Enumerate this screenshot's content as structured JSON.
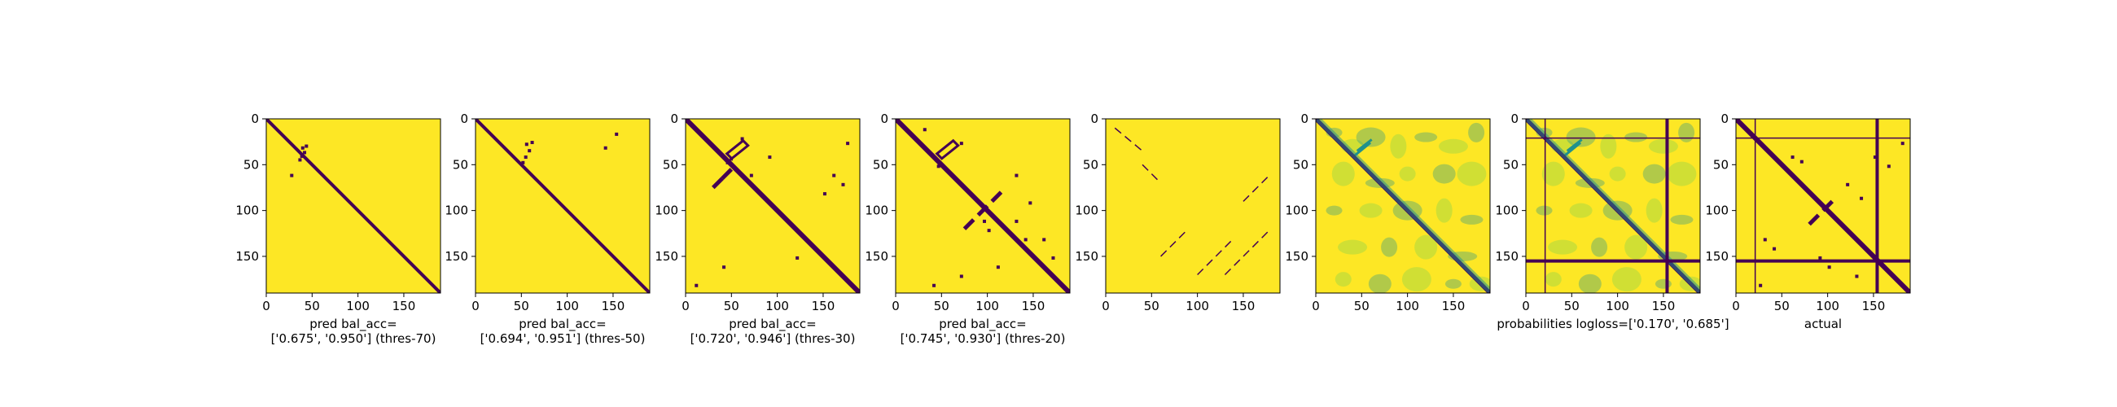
{
  "colors": {
    "low": "#440154",
    "mid": "#21918c",
    "light": "#7ad151",
    "high": "#fde725"
  },
  "chart_data": [
    {
      "type": "heatmap",
      "kind": "binary",
      "xlabel_lines": [
        "pred bal_acc=",
        "['0.675', '0.950'] (thres-70)"
      ],
      "xticks": [
        0,
        50,
        100,
        150
      ],
      "yticks": [
        0,
        50,
        100,
        150
      ],
      "xlim": [
        0,
        190
      ],
      "ylim": [
        0,
        190
      ]
    },
    {
      "type": "heatmap",
      "kind": "binary",
      "xlabel_lines": [
        "pred bal_acc=",
        "['0.694', '0.951'] (thres-50)"
      ],
      "xticks": [
        0,
        50,
        100,
        150
      ],
      "yticks": [
        0,
        50,
        100,
        150
      ],
      "xlim": [
        0,
        190
      ],
      "ylim": [
        0,
        190
      ]
    },
    {
      "type": "heatmap",
      "kind": "binary",
      "xlabel_lines": [
        "pred bal_acc=",
        "['0.720', '0.946'] (thres-30)"
      ],
      "xticks": [
        0,
        50,
        100,
        150
      ],
      "yticks": [
        0,
        50,
        100,
        150
      ],
      "xlim": [
        0,
        190
      ],
      "ylim": [
        0,
        190
      ]
    },
    {
      "type": "heatmap",
      "kind": "binary",
      "xlabel_lines": [
        "pred bal_acc=",
        "['0.745', '0.930'] (thres-20)"
      ],
      "xticks": [
        0,
        50,
        100,
        150
      ],
      "yticks": [
        0,
        50,
        100,
        150
      ],
      "xlim": [
        0,
        190
      ],
      "ylim": [
        0,
        190
      ]
    },
    {
      "type": "heatmap",
      "kind": "binary",
      "xlabel_lines": [],
      "xticks": [
        0,
        50,
        100,
        150
      ],
      "yticks": [
        0,
        50,
        100,
        150
      ],
      "xlim": [
        0,
        190
      ],
      "ylim": [
        0,
        190
      ]
    },
    {
      "type": "heatmap",
      "kind": "probability",
      "xlabel_lines": [],
      "xticks": [
        0,
        50,
        100,
        150
      ],
      "yticks": [
        0,
        50,
        100,
        150
      ],
      "xlim": [
        0,
        190
      ],
      "ylim": [
        0,
        190
      ]
    },
    {
      "type": "heatmap",
      "kind": "probability",
      "xlabel_lines": [
        "probabilities logloss=['0.170', '0.685']"
      ],
      "xticks": [
        0,
        50,
        100,
        150
      ],
      "yticks": [
        0,
        50,
        100,
        150
      ],
      "xlim": [
        0,
        190
      ],
      "ylim": [
        0,
        190
      ]
    },
    {
      "type": "heatmap",
      "kind": "binary",
      "xlabel_lines": [
        "actual"
      ],
      "xticks": [
        0,
        50,
        100,
        150
      ],
      "yticks": [
        0,
        50,
        100,
        150
      ],
      "xlim": [
        0,
        190
      ],
      "ylim": [
        0,
        190
      ]
    }
  ]
}
